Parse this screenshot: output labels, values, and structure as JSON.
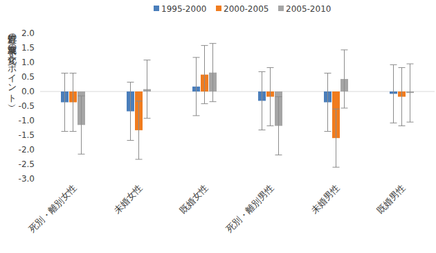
{
  "chart_data": {
    "type": "bar",
    "y_label": "処置群の就業率の変化（%ポイント）",
    "categories": [
      "死別・離別女性",
      "未婚女性",
      "既婚女性",
      "死別・離別男性",
      "未婚男性",
      "既婚男性"
    ],
    "series": [
      {
        "name": "1995-2000",
        "color": "#4a7ebb",
        "values": [
          -0.37,
          -0.68,
          0.17,
          -0.32,
          -0.37,
          -0.08
        ],
        "errors": [
          1.0,
          1.0,
          1.0,
          1.0,
          1.0,
          1.0
        ]
      },
      {
        "name": "2000-2005",
        "color": "#f07c1f",
        "values": [
          -0.37,
          -1.33,
          0.58,
          -0.18,
          -1.6,
          -0.18
        ],
        "errors": [
          1.0,
          1.0,
          1.0,
          1.0,
          1.0,
          1.0
        ]
      },
      {
        "name": "2005-2010",
        "color": "#a5a5a5",
        "values": [
          -1.15,
          0.08,
          0.65,
          -1.18,
          0.43,
          -0.05
        ],
        "errors": [
          1.0,
          1.0,
          1.0,
          1.0,
          1.0,
          1.0
        ]
      }
    ],
    "ylim": [
      -3,
      2
    ],
    "yticks": [
      {
        "value": 2,
        "label": "2.0"
      },
      1.5,
      {
        "value": 1,
        "label": "1.0"
      },
      0.5,
      {
        "value": 0,
        "label": "0.0"
      },
      -0.5,
      {
        "value": -1,
        "label": "-1.0"
      },
      -1.5,
      {
        "value": -2,
        "label": "-2.0"
      },
      -2.5,
      {
        "value": -3,
        "label": "-3.0"
      }
    ],
    "legend": "top",
    "grid": false
  }
}
